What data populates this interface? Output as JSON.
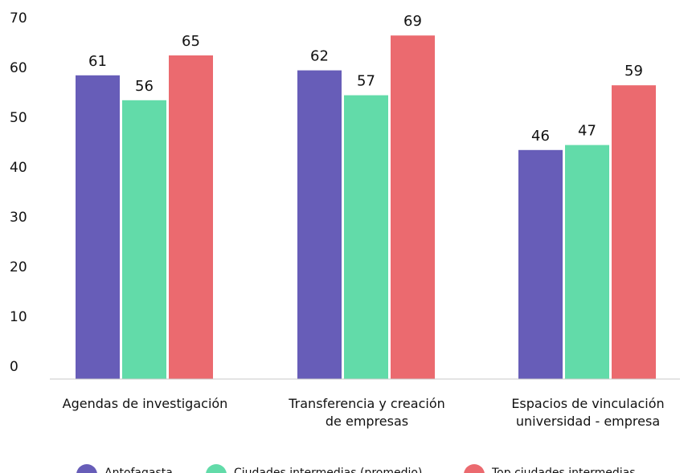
{
  "chart_data": {
    "type": "bar",
    "categories": [
      [
        "Agendas de investigación"
      ],
      [
        "Transferencia y creación",
        "de empresas"
      ],
      [
        "Espacios de vinculación",
        "universidad - empresa"
      ]
    ],
    "series": [
      {
        "name": "Antofagasta",
        "color": "#675db8",
        "values": [
          61,
          62,
          46
        ]
      },
      {
        "name": "Ciudades intermedias (promedio)",
        "color": "#62dba9",
        "values": [
          56,
          57,
          47
        ]
      },
      {
        "name": "Top ciudades intermedias",
        "color": "#eb6a6f",
        "values": [
          65,
          69,
          59
        ]
      }
    ],
    "yticks": [
      0,
      10,
      20,
      30,
      40,
      50,
      60,
      70
    ],
    "ylim": [
      0,
      70
    ],
    "grid": false,
    "legend_position": "bottom"
  }
}
